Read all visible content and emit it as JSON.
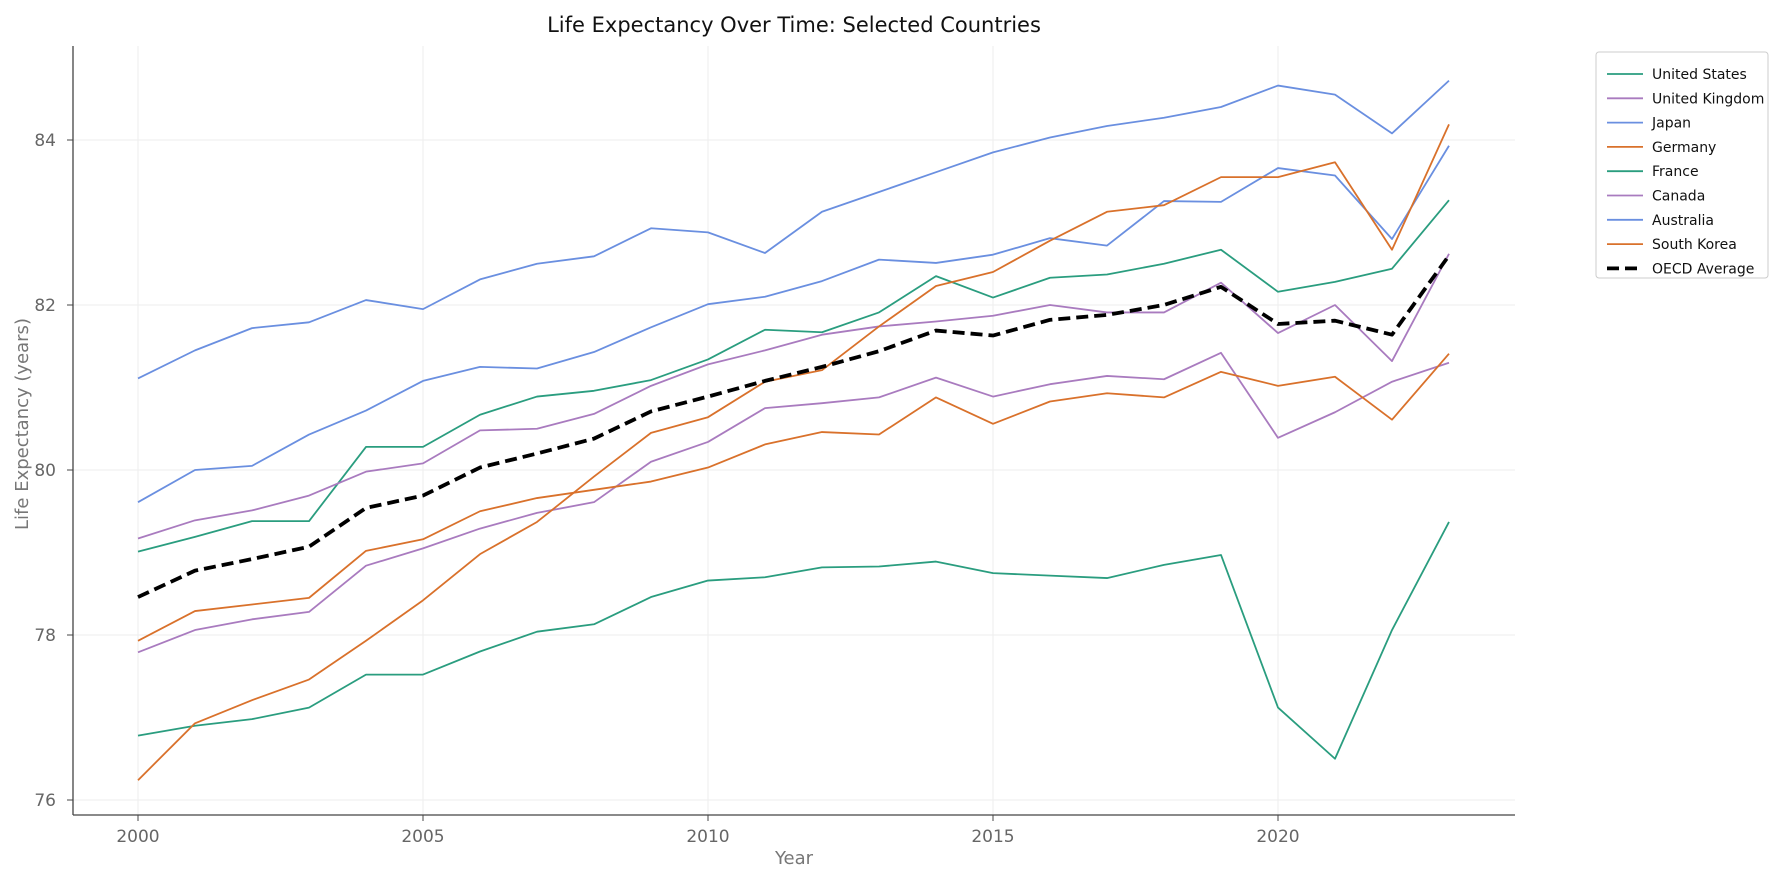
{
  "chart_data": {
    "type": "line",
    "title": "Life Expectancy Over Time: Selected Countries",
    "xlabel": "Year",
    "ylabel": "Life Expectancy (years)",
    "xlim": [
      1998.7,
      2024.3
    ],
    "ylim": [
      75.8,
      85.1
    ],
    "xticks": [
      2000,
      2005,
      2010,
      2015,
      2020
    ],
    "yticks": [
      76,
      78,
      80,
      82,
      84
    ],
    "grid": true,
    "legend_placement": "outside-top-right",
    "x": [
      2000,
      2001,
      2002,
      2003,
      2004,
      2005,
      2006,
      2007,
      2008,
      2009,
      2010,
      2011,
      2012,
      2013,
      2014,
      2015,
      2016,
      2017,
      2018,
      2019,
      2020,
      2021,
      2022,
      2023
    ],
    "series": [
      {
        "name": "United States",
        "color": "#2a9d7f",
        "dashed": false,
        "values": [
          76.78,
          76.9,
          76.98,
          77.12,
          77.52,
          77.52,
          77.8,
          78.04,
          78.13,
          78.46,
          78.66,
          78.7,
          78.82,
          78.83,
          78.89,
          78.75,
          78.72,
          78.69,
          78.85,
          78.97,
          77.12,
          76.5,
          78.06,
          79.37
        ]
      },
      {
        "name": "United Kingdom",
        "color": "#a97bbf",
        "dashed": false,
        "values": [
          77.79,
          78.06,
          78.19,
          78.28,
          78.84,
          79.05,
          79.29,
          79.48,
          79.61,
          80.1,
          80.34,
          80.75,
          80.81,
          80.88,
          81.12,
          80.89,
          81.04,
          81.14,
          81.1,
          81.42,
          80.39,
          80.7,
          81.07,
          81.3
        ]
      },
      {
        "name": "Japan",
        "color": "#6a8fe0",
        "dashed": false,
        "values": [
          81.11,
          81.45,
          81.72,
          81.79,
          82.06,
          81.95,
          82.31,
          82.5,
          82.59,
          82.93,
          82.88,
          82.63,
          83.13,
          83.37,
          83.61,
          83.85,
          84.03,
          84.17,
          84.27,
          84.4,
          84.66,
          84.55,
          84.08,
          84.72
        ]
      },
      {
        "name": "Germany",
        "color": "#d9712b",
        "dashed": false,
        "values": [
          77.93,
          78.29,
          78.37,
          78.45,
          79.02,
          79.16,
          79.5,
          79.66,
          79.76,
          79.86,
          80.03,
          80.31,
          80.46,
          80.43,
          80.88,
          80.56,
          80.83,
          80.93,
          80.88,
          81.19,
          81.02,
          81.13,
          80.61,
          81.41
        ]
      },
      {
        "name": "France",
        "color": "#2a9d7f",
        "dashed": false,
        "values": [
          79.01,
          79.19,
          79.38,
          79.38,
          80.28,
          80.28,
          80.67,
          80.89,
          80.96,
          81.09,
          81.34,
          81.7,
          81.67,
          81.91,
          82.35,
          82.09,
          82.33,
          82.37,
          82.5,
          82.67,
          82.16,
          82.28,
          82.44,
          83.27
        ]
      },
      {
        "name": "Canada",
        "color": "#a97bbf",
        "dashed": false,
        "values": [
          79.17,
          79.39,
          79.51,
          79.69,
          79.98,
          80.08,
          80.48,
          80.5,
          80.68,
          81.02,
          81.28,
          81.45,
          81.64,
          81.74,
          81.8,
          81.87,
          82.0,
          81.91,
          81.91,
          82.27,
          81.66,
          82.0,
          81.32,
          82.62
        ]
      },
      {
        "name": "Australia",
        "color": "#6a8fe0",
        "dashed": false,
        "values": [
          79.61,
          80.0,
          80.05,
          80.43,
          80.72,
          81.08,
          81.25,
          81.23,
          81.43,
          81.73,
          82.01,
          82.1,
          82.29,
          82.55,
          82.51,
          82.61,
          82.81,
          82.72,
          83.26,
          83.25,
          83.66,
          83.57,
          82.8,
          83.93
        ]
      },
      {
        "name": "South Korea",
        "color": "#d9712b",
        "dashed": false,
        "values": [
          76.24,
          76.93,
          77.21,
          77.46,
          77.93,
          78.42,
          78.98,
          79.37,
          79.92,
          80.45,
          80.64,
          81.07,
          81.21,
          81.74,
          82.23,
          82.4,
          82.78,
          83.13,
          83.21,
          83.55,
          83.55,
          83.73,
          82.67,
          84.19
        ]
      },
      {
        "name": "OECD Average",
        "color": "#000000",
        "dashed": true,
        "values": [
          78.46,
          78.78,
          78.92,
          79.07,
          79.54,
          79.69,
          80.03,
          80.2,
          80.38,
          80.71,
          80.89,
          81.08,
          81.25,
          81.44,
          81.69,
          81.63,
          81.82,
          81.88,
          82.0,
          82.22,
          81.77,
          81.81,
          81.64,
          82.6
        ]
      }
    ]
  }
}
